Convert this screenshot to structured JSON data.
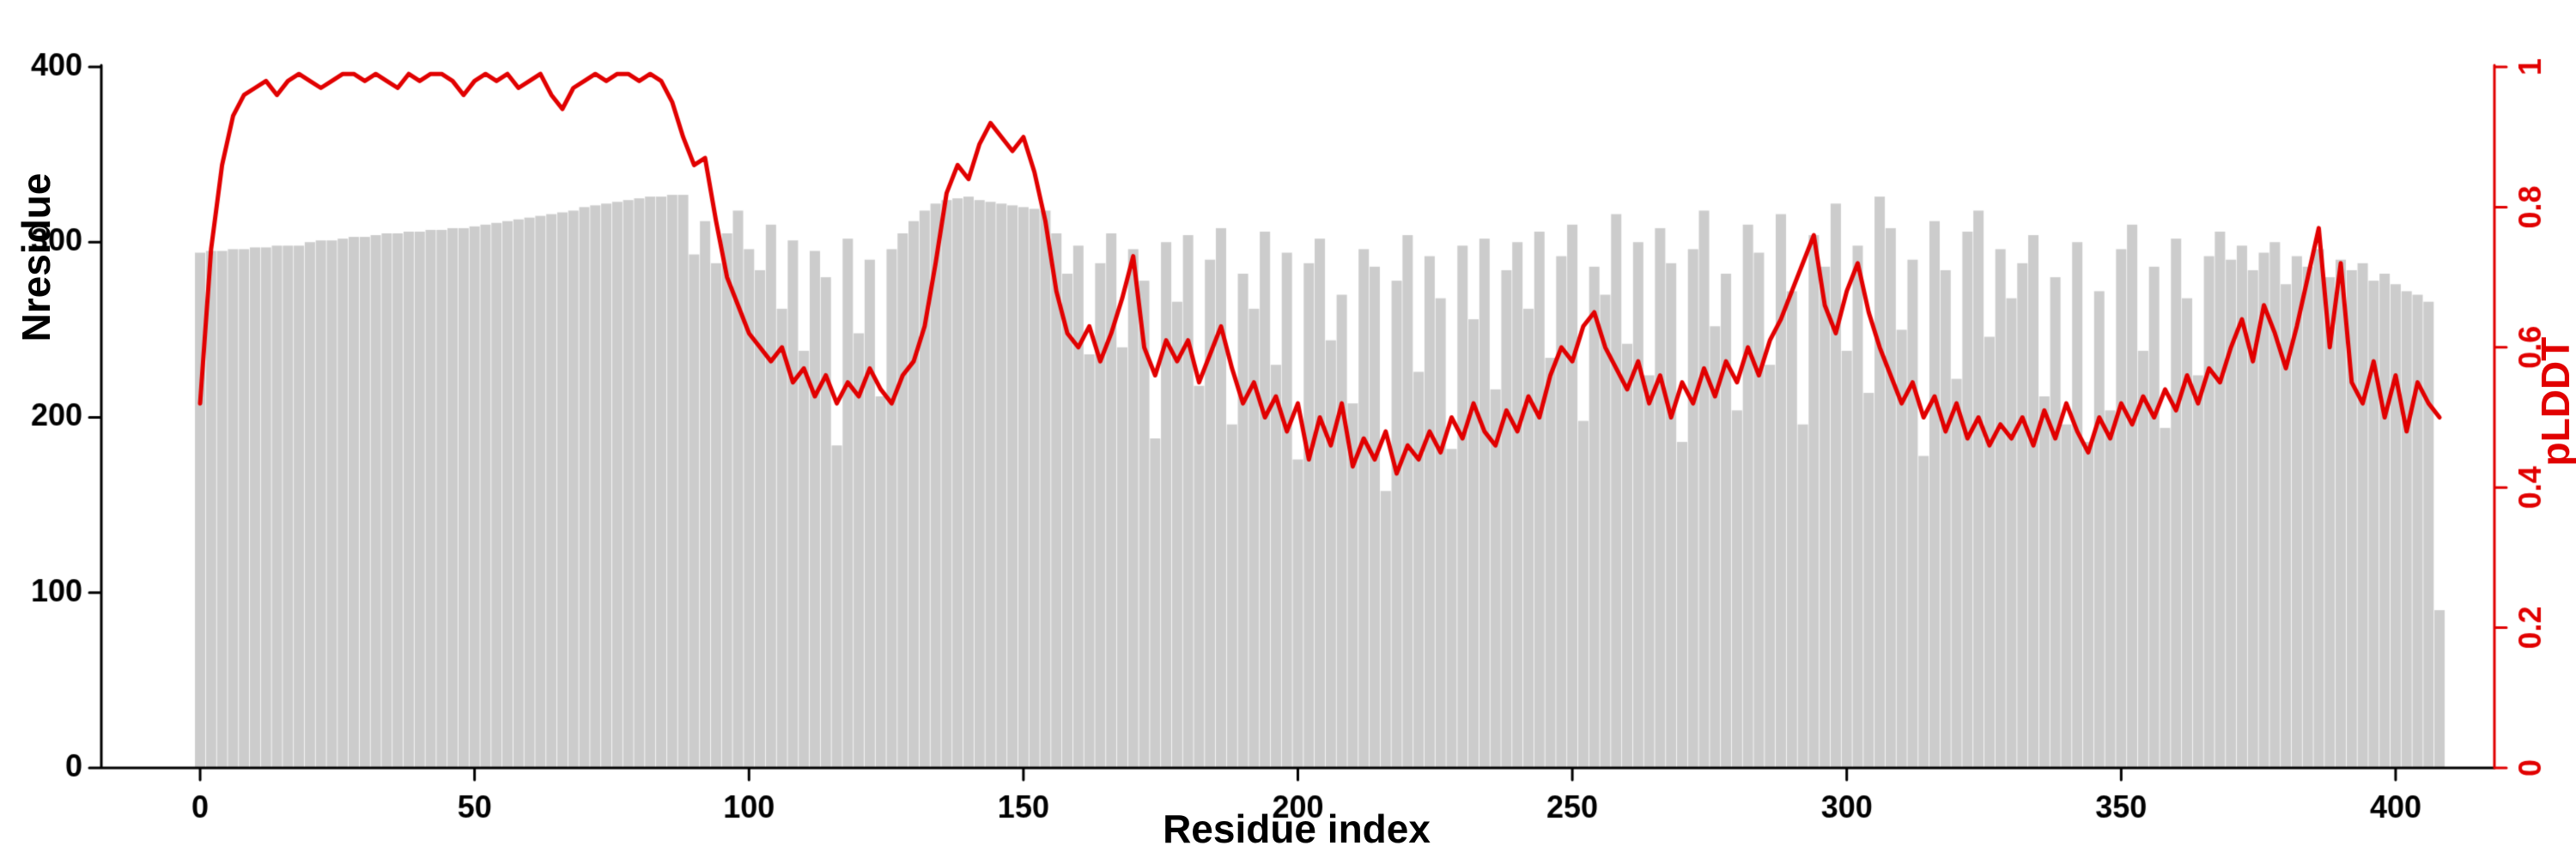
{
  "chart_data": {
    "type": "bar",
    "title": "",
    "xlabel": "Residue index",
    "ylabel_left": "Nresidue",
    "ylabel_right": "pLDDT",
    "xlim": [
      -18,
      418
    ],
    "ylim_left": [
      0,
      400
    ],
    "ylim_right": [
      0,
      1
    ],
    "xticks": [
      0,
      50,
      100,
      150,
      200,
      250,
      300,
      350,
      400
    ],
    "xtick_labels": [
      "0",
      "50",
      "100",
      "150",
      "200",
      "250",
      "300",
      "350",
      "400"
    ],
    "yticks_left": [
      0,
      100,
      200,
      300,
      400
    ],
    "ytick_labels_left": [
      "0",
      "100",
      "200",
      "300",
      "400"
    ],
    "yticks_right": [
      0,
      0.2,
      0.4,
      0.6,
      0.8,
      1
    ],
    "ytick_labels_right": [
      "0",
      "0.2",
      "0.4",
      "0.6",
      "0.8",
      "1"
    ],
    "axis_color": "#000000",
    "background": "#ffffff",
    "grid": false,
    "legend": "none",
    "x": [
      0,
      2,
      4,
      6,
      8,
      10,
      12,
      14,
      16,
      18,
      20,
      22,
      24,
      26,
      28,
      30,
      32,
      34,
      36,
      38,
      40,
      42,
      44,
      46,
      48,
      50,
      52,
      54,
      56,
      58,
      60,
      62,
      64,
      66,
      68,
      70,
      72,
      74,
      76,
      78,
      80,
      82,
      84,
      86,
      88,
      90,
      92,
      94,
      96,
      98,
      100,
      102,
      104,
      106,
      108,
      110,
      112,
      114,
      116,
      118,
      120,
      122,
      124,
      126,
      128,
      130,
      132,
      134,
      136,
      138,
      140,
      142,
      144,
      146,
      148,
      150,
      152,
      154,
      156,
      158,
      160,
      162,
      164,
      166,
      168,
      170,
      172,
      174,
      176,
      178,
      180,
      182,
      184,
      186,
      188,
      190,
      192,
      194,
      196,
      198,
      200,
      202,
      204,
      206,
      208,
      210,
      212,
      214,
      216,
      218,
      220,
      222,
      224,
      226,
      228,
      230,
      232,
      234,
      236,
      238,
      240,
      242,
      244,
      246,
      248,
      250,
      252,
      254,
      256,
      258,
      260,
      262,
      264,
      266,
      268,
      270,
      272,
      274,
      276,
      278,
      280,
      282,
      284,
      286,
      288,
      290,
      292,
      294,
      296,
      298,
      300,
      302,
      304,
      306,
      308,
      310,
      312,
      314,
      316,
      318,
      320,
      322,
      324,
      326,
      328,
      330,
      332,
      334,
      336,
      338,
      340,
      342,
      344,
      346,
      348,
      350,
      352,
      354,
      356,
      358,
      360,
      362,
      364,
      366,
      368,
      370,
      372,
      374,
      376,
      378,
      380,
      382,
      384,
      386,
      388,
      390,
      392,
      394,
      396,
      398,
      400,
      402,
      404,
      406,
      408
    ],
    "series": [
      {
        "name": "Nresidue",
        "type": "bar",
        "axis": "left",
        "color": "#cccccc",
        "values": [
          294,
          295,
          295,
          296,
          296,
          297,
          297,
          298,
          298,
          298,
          300,
          301,
          301,
          302,
          303,
          303,
          304,
          305,
          305,
          306,
          306,
          307,
          307,
          308,
          308,
          309,
          310,
          311,
          312,
          313,
          314,
          315,
          316,
          317,
          318,
          320,
          321,
          322,
          323,
          324,
          325,
          326,
          326,
          327,
          327,
          293,
          312,
          288,
          305,
          318,
          296,
          284,
          310,
          262,
          301,
          238,
          295,
          280,
          184,
          302,
          248,
          290,
          212,
          296,
          305,
          312,
          318,
          322,
          324,
          325,
          326,
          324,
          323,
          322,
          321,
          320,
          319,
          318,
          305,
          282,
          298,
          236,
          288,
          305,
          240,
          296,
          278,
          188,
          300,
          266,
          304,
          218,
          290,
          308,
          196,
          282,
          262,
          306,
          230,
          294,
          176,
          288,
          302,
          244,
          270,
          208,
          296,
          286,
          158,
          278,
          304,
          226,
          292,
          268,
          182,
          298,
          256,
          302,
          216,
          284,
          300,
          262,
          306,
          234,
          292,
          310,
          198,
          286,
          270,
          316,
          242,
          300,
          224,
          308,
          288,
          186,
          296,
          318,
          252,
          282,
          204,
          310,
          294,
          230,
          316,
          272,
          196,
          304,
          286,
          322,
          238,
          298,
          214,
          326,
          308,
          250,
          290,
          178,
          312,
          284,
          222,
          306,
          318,
          246,
          296,
          268,
          288,
          304,
          212,
          280,
          196,
          300,
          186,
          272,
          204,
          296,
          310,
          238,
          286,
          194,
          302,
          268,
          224,
          292,
          306,
          290,
          298,
          284,
          294,
          300,
          276,
          292,
          286,
          296,
          280,
          290,
          284,
          288,
          278,
          282,
          276,
          272,
          270,
          266,
          90
        ]
      },
      {
        "name": "pLDDT",
        "type": "line",
        "axis": "right",
        "color": "#e10000",
        "values": [
          0.52,
          0.74,
          0.86,
          0.93,
          0.96,
          0.97,
          0.98,
          0.96,
          0.98,
          0.99,
          0.98,
          0.97,
          0.98,
          0.99,
          0.99,
          0.98,
          0.99,
          0.98,
          0.97,
          0.99,
          0.98,
          0.99,
          0.99,
          0.98,
          0.96,
          0.98,
          0.99,
          0.98,
          0.99,
          0.97,
          0.98,
          0.99,
          0.96,
          0.94,
          0.97,
          0.98,
          0.99,
          0.98,
          0.99,
          0.99,
          0.98,
          0.99,
          0.98,
          0.95,
          0.9,
          0.86,
          0.87,
          0.78,
          0.7,
          0.66,
          0.62,
          0.6,
          0.58,
          0.6,
          0.55,
          0.57,
          0.53,
          0.56,
          0.52,
          0.55,
          0.53,
          0.57,
          0.54,
          0.52,
          0.56,
          0.58,
          0.63,
          0.72,
          0.82,
          0.86,
          0.84,
          0.89,
          0.92,
          0.9,
          0.88,
          0.9,
          0.85,
          0.78,
          0.68,
          0.62,
          0.6,
          0.63,
          0.58,
          0.62,
          0.67,
          0.73,
          0.6,
          0.56,
          0.61,
          0.58,
          0.61,
          0.55,
          0.59,
          0.63,
          0.57,
          0.52,
          0.55,
          0.5,
          0.53,
          0.48,
          0.52,
          0.44,
          0.5,
          0.46,
          0.52,
          0.43,
          0.47,
          0.44,
          0.48,
          0.42,
          0.46,
          0.44,
          0.48,
          0.45,
          0.5,
          0.47,
          0.52,
          0.48,
          0.46,
          0.51,
          0.48,
          0.53,
          0.5,
          0.56,
          0.6,
          0.58,
          0.63,
          0.65,
          0.6,
          0.57,
          0.54,
          0.58,
          0.52,
          0.56,
          0.5,
          0.55,
          0.52,
          0.57,
          0.53,
          0.58,
          0.55,
          0.6,
          0.56,
          0.61,
          0.64,
          0.68,
          0.72,
          0.76,
          0.66,
          0.62,
          0.68,
          0.72,
          0.65,
          0.6,
          0.56,
          0.52,
          0.55,
          0.5,
          0.53,
          0.48,
          0.52,
          0.47,
          0.5,
          0.46,
          0.49,
          0.47,
          0.5,
          0.46,
          0.51,
          0.47,
          0.52,
          0.48,
          0.45,
          0.5,
          0.47,
          0.52,
          0.49,
          0.53,
          0.5,
          0.54,
          0.51,
          0.56,
          0.52,
          0.57,
          0.55,
          0.6,
          0.64,
          0.58,
          0.66,
          0.62,
          0.57,
          0.63,
          0.7,
          0.77,
          0.6,
          0.72,
          0.55,
          0.52,
          0.58,
          0.5,
          0.56,
          0.48,
          0.55,
          0.52,
          0.5
        ]
      }
    ]
  }
}
